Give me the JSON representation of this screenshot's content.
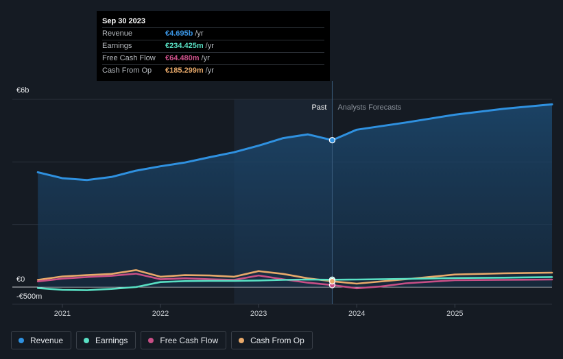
{
  "chart_data": {
    "type": "line",
    "title": "",
    "currency": "€",
    "y_unit": "m",
    "ylim": [
      -500,
      6000
    ],
    "xlim": [
      2020.7,
      2025.99
    ],
    "y_tick_labels": [
      {
        "value": 6000,
        "label": "€6b"
      },
      {
        "value": 0,
        "label": "€0"
      },
      {
        "value": -500,
        "label": "-€500m"
      }
    ],
    "x_ticks": [
      {
        "value": 2021,
        "label": "2021"
      },
      {
        "value": 2022,
        "label": "2022"
      },
      {
        "value": 2023,
        "label": "2023"
      },
      {
        "value": 2024,
        "label": "2024"
      },
      {
        "value": 2025,
        "label": "2025"
      }
    ],
    "past_label": "Past",
    "forecast_label": "Analysts Forecasts",
    "divider_x": 2023.75,
    "highlight_start_x": 2022.75,
    "series": [
      {
        "name": "Revenue",
        "color": "#2f91e0",
        "points": [
          [
            2020.75,
            3670
          ],
          [
            2021.0,
            3480
          ],
          [
            2021.25,
            3420
          ],
          [
            2021.5,
            3520
          ],
          [
            2021.75,
            3720
          ],
          [
            2022.0,
            3860
          ],
          [
            2022.25,
            3980
          ],
          [
            2022.5,
            4150
          ],
          [
            2022.75,
            4310
          ],
          [
            2023.0,
            4520
          ],
          [
            2023.25,
            4760
          ],
          [
            2023.5,
            4880
          ],
          [
            2023.75,
            4695
          ],
          [
            2024.0,
            5030
          ],
          [
            2024.5,
            5260
          ],
          [
            2025.0,
            5510
          ],
          [
            2025.5,
            5700
          ],
          [
            2025.99,
            5840
          ]
        ]
      },
      {
        "name": "Earnings",
        "color": "#59e0c4",
        "points": [
          [
            2020.75,
            -30
          ],
          [
            2021.0,
            -90
          ],
          [
            2021.25,
            -100
          ],
          [
            2021.5,
            -60
          ],
          [
            2021.75,
            0
          ],
          [
            2022.0,
            160
          ],
          [
            2022.25,
            190
          ],
          [
            2022.5,
            200
          ],
          [
            2022.75,
            200
          ],
          [
            2023.0,
            210
          ],
          [
            2023.25,
            230
          ],
          [
            2023.5,
            240
          ],
          [
            2023.75,
            234
          ],
          [
            2024.0,
            240
          ],
          [
            2024.5,
            260
          ],
          [
            2025.0,
            290
          ],
          [
            2025.5,
            300
          ],
          [
            2025.99,
            320
          ]
        ]
      },
      {
        "name": "Free Cash Flow",
        "color": "#c84f86",
        "points": [
          [
            2020.75,
            180
          ],
          [
            2021.0,
            270
          ],
          [
            2021.25,
            320
          ],
          [
            2021.5,
            360
          ],
          [
            2021.75,
            430
          ],
          [
            2022.0,
            250
          ],
          [
            2022.25,
            280
          ],
          [
            2022.5,
            250
          ],
          [
            2022.75,
            230
          ],
          [
            2023.0,
            370
          ],
          [
            2023.25,
            250
          ],
          [
            2023.5,
            140
          ],
          [
            2023.75,
            64
          ],
          [
            2024.0,
            -40
          ],
          [
            2024.25,
            20
          ],
          [
            2024.5,
            120
          ],
          [
            2025.0,
            220
          ],
          [
            2025.5,
            230
          ],
          [
            2025.99,
            240
          ]
        ]
      },
      {
        "name": "Cash From Op",
        "color": "#e8a96a",
        "points": [
          [
            2020.75,
            230
          ],
          [
            2021.0,
            340
          ],
          [
            2021.25,
            380
          ],
          [
            2021.5,
            420
          ],
          [
            2021.75,
            540
          ],
          [
            2022.0,
            330
          ],
          [
            2022.25,
            380
          ],
          [
            2022.5,
            370
          ],
          [
            2022.75,
            330
          ],
          [
            2023.0,
            510
          ],
          [
            2023.25,
            420
          ],
          [
            2023.5,
            280
          ],
          [
            2023.75,
            185
          ],
          [
            2024.0,
            110
          ],
          [
            2024.5,
            250
          ],
          [
            2025.0,
            400
          ],
          [
            2025.5,
            440
          ],
          [
            2025.99,
            460
          ]
        ]
      }
    ]
  },
  "tooltip": {
    "date": "Sep 30 2023",
    "rows": [
      {
        "label": "Revenue",
        "value": "€4.695b",
        "unit": "/yr",
        "color": "#3a95e4"
      },
      {
        "label": "Earnings",
        "value": "€234.425m",
        "unit": "/yr",
        "color": "#59e0c4"
      },
      {
        "label": "Free Cash Flow",
        "value": "€64.480m",
        "unit": "/yr",
        "color": "#d0528c"
      },
      {
        "label": "Cash From Op",
        "value": "€185.299m",
        "unit": "/yr",
        "color": "#e8a96a"
      }
    ]
  },
  "legend": [
    {
      "label": "Revenue",
      "color": "#2f91e0"
    },
    {
      "label": "Earnings",
      "color": "#59e0c4"
    },
    {
      "label": "Free Cash Flow",
      "color": "#c84f86"
    },
    {
      "label": "Cash From Op",
      "color": "#e8a96a"
    }
  ]
}
